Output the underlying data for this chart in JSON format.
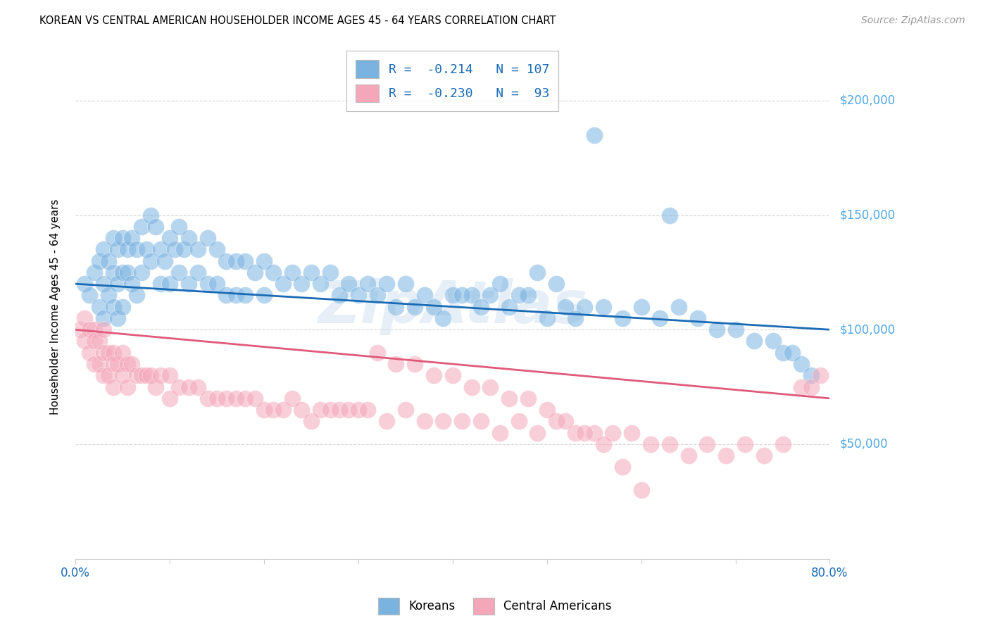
{
  "title": "KOREAN VS CENTRAL AMERICAN HOUSEHOLDER INCOME AGES 45 - 64 YEARS CORRELATION CHART",
  "source": "Source: ZipAtlas.com",
  "ylabel": "Householder Income Ages 45 - 64 years",
  "ytick_labels": [
    "$50,000",
    "$100,000",
    "$150,000",
    "$200,000"
  ],
  "ytick_values": [
    50000,
    100000,
    150000,
    200000
  ],
  "xlim": [
    0.0,
    0.8
  ],
  "ylim": [
    0,
    220000
  ],
  "korean_color": "#7ab3e0",
  "central_color": "#f4a7b9",
  "korean_line_color": "#1a6bb5",
  "central_line_color": "#e05a7a",
  "right_label_color": "#4da6e8",
  "korean_R": "-0.214",
  "korean_N": "107",
  "central_R": "-0.230",
  "central_N": "93",
  "watermark": "ZipAtlas",
  "legend_labels": [
    "Koreans",
    "Central Americans"
  ],
  "korean_x": [
    0.01,
    0.015,
    0.02,
    0.025,
    0.025,
    0.03,
    0.03,
    0.03,
    0.035,
    0.035,
    0.04,
    0.04,
    0.04,
    0.045,
    0.045,
    0.045,
    0.05,
    0.05,
    0.05,
    0.055,
    0.055,
    0.06,
    0.06,
    0.065,
    0.065,
    0.07,
    0.07,
    0.075,
    0.08,
    0.08,
    0.085,
    0.09,
    0.09,
    0.095,
    0.1,
    0.1,
    0.105,
    0.11,
    0.11,
    0.115,
    0.12,
    0.12,
    0.13,
    0.13,
    0.14,
    0.14,
    0.15,
    0.15,
    0.16,
    0.16,
    0.17,
    0.17,
    0.18,
    0.18,
    0.19,
    0.2,
    0.2,
    0.21,
    0.22,
    0.23,
    0.24,
    0.25,
    0.26,
    0.27,
    0.28,
    0.29,
    0.3,
    0.31,
    0.32,
    0.33,
    0.34,
    0.35,
    0.36,
    0.37,
    0.38,
    0.4,
    0.42,
    0.44,
    0.46,
    0.48,
    0.5,
    0.52,
    0.54,
    0.56,
    0.58,
    0.6,
    0.62,
    0.64,
    0.66,
    0.68,
    0.7,
    0.72,
    0.74,
    0.75,
    0.76,
    0.77,
    0.78,
    0.55,
    0.63,
    0.45,
    0.47,
    0.49,
    0.51,
    0.53,
    0.43,
    0.41,
    0.39
  ],
  "korean_y": [
    120000,
    115000,
    125000,
    130000,
    110000,
    135000,
    120000,
    105000,
    130000,
    115000,
    140000,
    125000,
    110000,
    135000,
    120000,
    105000,
    140000,
    125000,
    110000,
    135000,
    125000,
    140000,
    120000,
    135000,
    115000,
    145000,
    125000,
    135000,
    150000,
    130000,
    145000,
    135000,
    120000,
    130000,
    140000,
    120000,
    135000,
    145000,
    125000,
    135000,
    140000,
    120000,
    135000,
    125000,
    140000,
    120000,
    135000,
    120000,
    130000,
    115000,
    130000,
    115000,
    130000,
    115000,
    125000,
    130000,
    115000,
    125000,
    120000,
    125000,
    120000,
    125000,
    120000,
    125000,
    115000,
    120000,
    115000,
    120000,
    115000,
    120000,
    110000,
    120000,
    110000,
    115000,
    110000,
    115000,
    115000,
    115000,
    110000,
    115000,
    105000,
    110000,
    110000,
    110000,
    105000,
    110000,
    105000,
    110000,
    105000,
    100000,
    100000,
    95000,
    95000,
    90000,
    90000,
    85000,
    80000,
    185000,
    150000,
    120000,
    115000,
    125000,
    120000,
    105000,
    110000,
    115000,
    105000
  ],
  "central_x": [
    0.005,
    0.01,
    0.01,
    0.015,
    0.015,
    0.02,
    0.02,
    0.02,
    0.025,
    0.025,
    0.03,
    0.03,
    0.03,
    0.035,
    0.035,
    0.04,
    0.04,
    0.04,
    0.045,
    0.05,
    0.05,
    0.055,
    0.055,
    0.06,
    0.065,
    0.07,
    0.075,
    0.08,
    0.085,
    0.09,
    0.1,
    0.1,
    0.11,
    0.12,
    0.13,
    0.14,
    0.15,
    0.16,
    0.17,
    0.18,
    0.19,
    0.2,
    0.21,
    0.22,
    0.23,
    0.24,
    0.25,
    0.26,
    0.27,
    0.28,
    0.29,
    0.3,
    0.31,
    0.33,
    0.35,
    0.37,
    0.39,
    0.41,
    0.43,
    0.45,
    0.47,
    0.49,
    0.51,
    0.53,
    0.55,
    0.57,
    0.59,
    0.61,
    0.63,
    0.65,
    0.67,
    0.69,
    0.71,
    0.73,
    0.75,
    0.77,
    0.78,
    0.79,
    0.32,
    0.34,
    0.36,
    0.38,
    0.4,
    0.42,
    0.44,
    0.46,
    0.48,
    0.5,
    0.52,
    0.54,
    0.56,
    0.58,
    0.6
  ],
  "central_y": [
    100000,
    105000,
    95000,
    100000,
    90000,
    100000,
    95000,
    85000,
    95000,
    85000,
    100000,
    90000,
    80000,
    90000,
    80000,
    90000,
    85000,
    75000,
    85000,
    90000,
    80000,
    85000,
    75000,
    85000,
    80000,
    80000,
    80000,
    80000,
    75000,
    80000,
    80000,
    70000,
    75000,
    75000,
    75000,
    70000,
    70000,
    70000,
    70000,
    70000,
    70000,
    65000,
    65000,
    65000,
    70000,
    65000,
    60000,
    65000,
    65000,
    65000,
    65000,
    65000,
    65000,
    60000,
    65000,
    60000,
    60000,
    60000,
    60000,
    55000,
    60000,
    55000,
    60000,
    55000,
    55000,
    55000,
    55000,
    50000,
    50000,
    45000,
    50000,
    45000,
    50000,
    45000,
    50000,
    75000,
    75000,
    80000,
    90000,
    85000,
    85000,
    80000,
    80000,
    75000,
    75000,
    70000,
    70000,
    65000,
    60000,
    55000,
    50000,
    40000,
    30000
  ]
}
